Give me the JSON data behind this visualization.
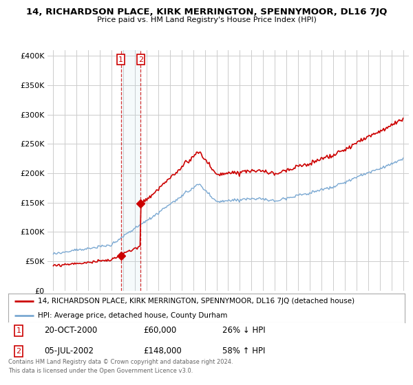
{
  "title": "14, RICHARDSON PLACE, KIRK MERRINGTON, SPENNYMOOR, DL16 7JQ",
  "subtitle": "Price paid vs. HM Land Registry's House Price Index (HPI)",
  "legend_line1": "14, RICHARDSON PLACE, KIRK MERRINGTON, SPENNYMOOR, DL16 7JQ (detached house)",
  "legend_line2": "HPI: Average price, detached house, County Durham",
  "footer1": "Contains HM Land Registry data © Crown copyright and database right 2024.",
  "footer2": "This data is licensed under the Open Government Licence v3.0.",
  "sale1_date": "20-OCT-2000",
  "sale1_price": "£60,000",
  "sale1_hpi": "26% ↓ HPI",
  "sale2_date": "05-JUL-2002",
  "sale2_price": "£148,000",
  "sale2_hpi": "58% ↑ HPI",
  "sale1_x": 2000.8,
  "sale1_y": 60000,
  "sale2_x": 2002.5,
  "sale2_y": 148000,
  "hpi_color": "#7aa8d2",
  "price_color": "#cc0000",
  "background_color": "#ffffff",
  "grid_color": "#cccccc",
  "ylim_min": 0,
  "ylim_max": 410000,
  "xlim_min": 1994.5,
  "xlim_max": 2025.5,
  "yticks": [
    0,
    50000,
    100000,
    150000,
    200000,
    250000,
    300000,
    350000,
    400000
  ],
  "ytick_labels": [
    "£0",
    "£50K",
    "£100K",
    "£150K",
    "£200K",
    "£250K",
    "£300K",
    "£350K",
    "£400K"
  ],
  "xticks": [
    1995,
    1996,
    1997,
    1998,
    1999,
    2000,
    2001,
    2002,
    2003,
    2004,
    2005,
    2006,
    2007,
    2008,
    2009,
    2010,
    2011,
    2012,
    2013,
    2014,
    2015,
    2016,
    2017,
    2018,
    2019,
    2020,
    2021,
    2022,
    2023,
    2024,
    2025
  ]
}
